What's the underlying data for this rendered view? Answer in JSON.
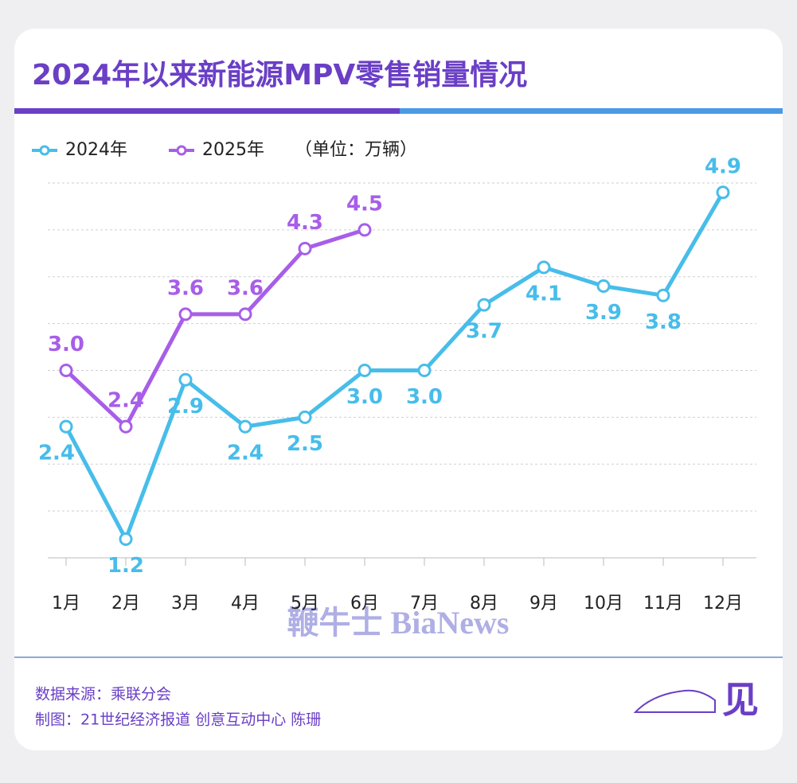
{
  "chart_data": {
    "type": "line",
    "title": "2024年以来新能源MPV零售销量情况",
    "unit": "（单位：万辆）",
    "categories": [
      "1月",
      "2月",
      "3月",
      "4月",
      "5月",
      "6月",
      "7月",
      "8月",
      "9月",
      "10月",
      "11月",
      "12月"
    ],
    "series": [
      {
        "name": "2024年",
        "color": "#47bdea",
        "values": [
          2.4,
          1.2,
          2.9,
          2.4,
          2.5,
          3.0,
          3.0,
          3.7,
          4.1,
          3.9,
          3.8,
          4.9
        ],
        "value_labels": [
          "2.4",
          "1.2",
          "2.9",
          "2.4",
          "2.5",
          "3.0",
          "3.0",
          "3.7",
          "4.1",
          "3.9",
          "3.8",
          "4.9"
        ]
      },
      {
        "name": "2025年",
        "color": "#a75ee8",
        "values": [
          3.0,
          2.4,
          3.6,
          3.6,
          4.3,
          4.5,
          null,
          null,
          null,
          null,
          null,
          null
        ],
        "value_labels": [
          "3.0",
          "2.4",
          "3.6",
          "3.6",
          "4.3",
          "4.5",
          null,
          null,
          null,
          null,
          null,
          null
        ]
      }
    ],
    "ylim": [
      1,
      5
    ],
    "yticks": [
      1,
      1.5,
      2,
      2.5,
      3,
      3.5,
      4,
      4.5,
      5
    ],
    "grid": true,
    "source": "数据来源：乘联分会",
    "credit": "制图：21世纪经济报道 创意互动中心 陈珊",
    "watermark": "鞭牛士 BiaNews",
    "logo": "见"
  }
}
